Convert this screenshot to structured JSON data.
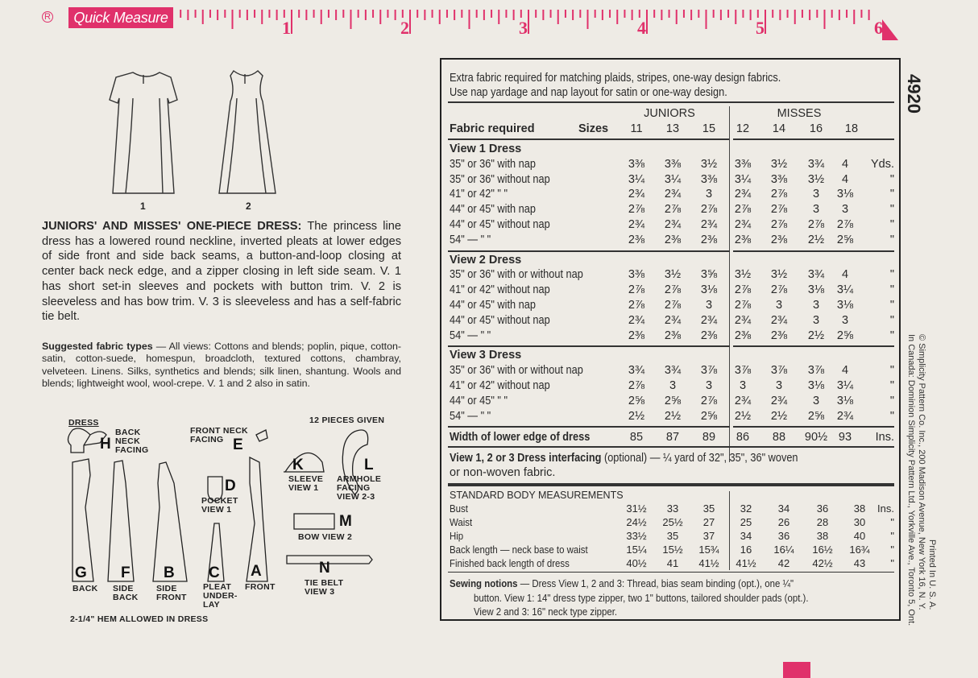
{
  "ruler": {
    "brand": "Quick Measure",
    "registered": "R",
    "inches": [
      "1",
      "2",
      "3",
      "4",
      "5",
      "6"
    ],
    "color": "#e0316b"
  },
  "pattern_number": "4920",
  "views": [
    "1",
    "2"
  ],
  "description": {
    "title": "JUNIORS' AND MISSES' ONE-PIECE DRESS:",
    "text": "The princess line dress has a lowered round neckline, inverted pleats at lower edges of side front and side back seams, a button-and-loop closing at center back neck edge, and a zipper closing in left side seam. V. 1 has short set-in sleeves and pockets with button trim. V. 2 is sleeveless and has bow trim. V. 3 is sleeveless and has a self-fabric tie belt."
  },
  "fabric_types": {
    "label": "Suggested fabric types",
    "text": " — All views: Cottons and blends; poplin, pique, cotton-satin, cotton-suede, homespun, broadcloth, textured cottons, chambray, velveteen. Linens. Silks, synthetics and blends; silk linen, shantung. Wools and blends; lightweight wool, wool-crepe. V. 1 and 2 also in satin."
  },
  "pieces": {
    "dress_label": "DRESS",
    "count": "12 PIECES GIVEN",
    "hem": "2-1/4\" HEM ALLOWED IN DRESS",
    "items": [
      {
        "letter": "H",
        "name": "BACK NECK FACING"
      },
      {
        "letter": "E",
        "name": "FRONT NECK FACING"
      },
      {
        "letter": "K",
        "name": "SLEEVE VIEW 1"
      },
      {
        "letter": "L",
        "name": "ARMHOLE FACING VIEW 2-3"
      },
      {
        "letter": "D",
        "name": "POCKET VIEW 1"
      },
      {
        "letter": "M",
        "name": "BOW VIEW 2"
      },
      {
        "letter": "N",
        "name": "TIE BELT VIEW 3"
      },
      {
        "letter": "G",
        "name": "BACK"
      },
      {
        "letter": "F",
        "name": "SIDE BACK"
      },
      {
        "letter": "B",
        "name": "SIDE FRONT"
      },
      {
        "letter": "C",
        "name": "PLEAT UNDER-LAY"
      },
      {
        "letter": "A",
        "name": "FRONT"
      }
    ]
  },
  "chart": {
    "note1": "Extra fabric required for matching plaids, stripes, one-way design fabrics.",
    "note2": "Use nap yardage and nap layout for satin or one-way design.",
    "group_juniors": "JUNIORS",
    "group_misses": "MISSES",
    "fabric_required": "Fabric required",
    "sizes_label": "Sizes",
    "sizes": [
      "11",
      "13",
      "15",
      "12",
      "14",
      "16",
      "18"
    ],
    "sections": [
      {
        "title": "View 1   Dress",
        "rows": [
          {
            "label": "35\" or 36\" with nap",
            "values": [
              "3⅜",
              "3⅜",
              "3½",
              "3⅜",
              "3½",
              "3¾",
              "4"
            ],
            "unit": "Yds."
          },
          {
            "label": "35\" or 36\" without nap",
            "values": [
              "3¼",
              "3¼",
              "3⅜",
              "3¼",
              "3⅜",
              "3½",
              "4"
            ],
            "unit": "\""
          },
          {
            "label": "41\" or 42\"       \"       \"",
            "values": [
              "2¾",
              "2¾",
              "3",
              "2¾",
              "2⅞",
              "3",
              "3⅛"
            ],
            "unit": "\""
          },
          {
            "label": "44\" or 45\" with nap",
            "values": [
              "2⅞",
              "2⅞",
              "2⅞",
              "2⅞",
              "2⅞",
              "3",
              "3"
            ],
            "unit": "\""
          },
          {
            "label": "44\" or 45\" without nap",
            "values": [
              "2¾",
              "2¾",
              "2¾",
              "2¾",
              "2⅞",
              "2⅞",
              "2⅞"
            ],
            "unit": "\""
          },
          {
            "label": "54\"     —      \"      \"",
            "values": [
              "2⅜",
              "2⅜",
              "2⅜",
              "2⅜",
              "2⅜",
              "2½",
              "2⅝"
            ],
            "unit": "\""
          }
        ]
      },
      {
        "title": "View 2   Dress",
        "rows": [
          {
            "label": "35\" or 36\" with or without nap",
            "values": [
              "3⅜",
              "3½",
              "3⅝",
              "3½",
              "3½",
              "3¾",
              "4"
            ],
            "unit": "\""
          },
          {
            "label": "41\" or 42\" without nap",
            "values": [
              "2⅞",
              "2⅞",
              "3⅛",
              "2⅞",
              "2⅞",
              "3⅛",
              "3¼"
            ],
            "unit": "\""
          },
          {
            "label": "44\" or 45\" with nap",
            "values": [
              "2⅞",
              "2⅞",
              "3",
              "2⅞",
              "3",
              "3",
              "3⅛"
            ],
            "unit": "\""
          },
          {
            "label": "44\" or 45\" without nap",
            "values": [
              "2¾",
              "2¾",
              "2¾",
              "2¾",
              "2¾",
              "3",
              "3"
            ],
            "unit": "\""
          },
          {
            "label": "54\"     —      \"      \"",
            "values": [
              "2⅜",
              "2⅜",
              "2⅜",
              "2⅜",
              "2⅜",
              "2½",
              "2⅝"
            ],
            "unit": "\""
          }
        ]
      },
      {
        "title": "View 3   Dress",
        "rows": [
          {
            "label": "35\" or 36\" with or without nap",
            "values": [
              "3¾",
              "3¾",
              "3⅞",
              "3⅞",
              "3⅞",
              "3⅞",
              "4"
            ],
            "unit": "\""
          },
          {
            "label": "41\" or 42\" without nap",
            "values": [
              "2⅞",
              "3",
              "3",
              "3",
              "3",
              "3⅛",
              "3¼"
            ],
            "unit": "\""
          },
          {
            "label": "44\" or 45\"       \"       \"",
            "values": [
              "2⅝",
              "2⅝",
              "2⅞",
              "2¾",
              "2¾",
              "3",
              "3⅛"
            ],
            "unit": "\""
          },
          {
            "label": "54\"     —      \"      \"",
            "values": [
              "2½",
              "2½",
              "2⅝",
              "2½",
              "2½",
              "2⅝",
              "2¾"
            ],
            "unit": "\""
          }
        ]
      }
    ],
    "width_row": {
      "label": "Width of lower edge of dress",
      "values": [
        "85",
        "87",
        "89",
        "86",
        "88",
        "90½",
        "93"
      ],
      "unit": "Ins."
    },
    "interfacing": {
      "label": "View 1, 2 or 3  Dress interfacing",
      "text": " (optional) — ¼ yard of 32\", 35\", 36\" woven",
      "text2": "or non-woven fabric."
    },
    "body": {
      "title": "STANDARD BODY MEASUREMENTS",
      "rows": [
        {
          "label": "Bust",
          "values": [
            "31½",
            "33",
            "35",
            "32",
            "34",
            "36",
            "38"
          ],
          "unit": "Ins."
        },
        {
          "label": "Waist",
          "values": [
            "24½",
            "25½",
            "27",
            "25",
            "26",
            "28",
            "30"
          ],
          "unit": "\""
        },
        {
          "label": "Hip",
          "values": [
            "33½",
            "35",
            "37",
            "34",
            "36",
            "38",
            "40"
          ],
          "unit": "\""
        },
        {
          "label": "Back length — neck base to waist",
          "values": [
            "15¼",
            "15½",
            "15¾",
            "16",
            "16¼",
            "16½",
            "16¾"
          ],
          "unit": "\""
        },
        {
          "label": "Finished back length of dress",
          "values": [
            "40½",
            "41",
            "41½",
            "41½",
            "42",
            "42½",
            "43"
          ],
          "unit": "\""
        }
      ]
    },
    "notions": {
      "label": "Sewing notions",
      "line1": " — Dress View 1, 2 and 3: Thread, bias seam binding (opt.), one ¼\"",
      "line2": "button. View 1: 14\" dress type zipper, two 1\" buttons, tailored shoulder pads (opt.).",
      "line3": "View 2 and 3: 16\" neck type zipper."
    }
  },
  "side_text": {
    "printed": "Printed In U. S. A.",
    "copyright": "© Simplicity Pattern Co. Inc., 200 Madison Avenue, New York 16, N. Y.",
    "canada": "In Canada: Dominion Simplicity Pattern Ltd., Yorkville Ave., Toronto 5, Ont."
  }
}
